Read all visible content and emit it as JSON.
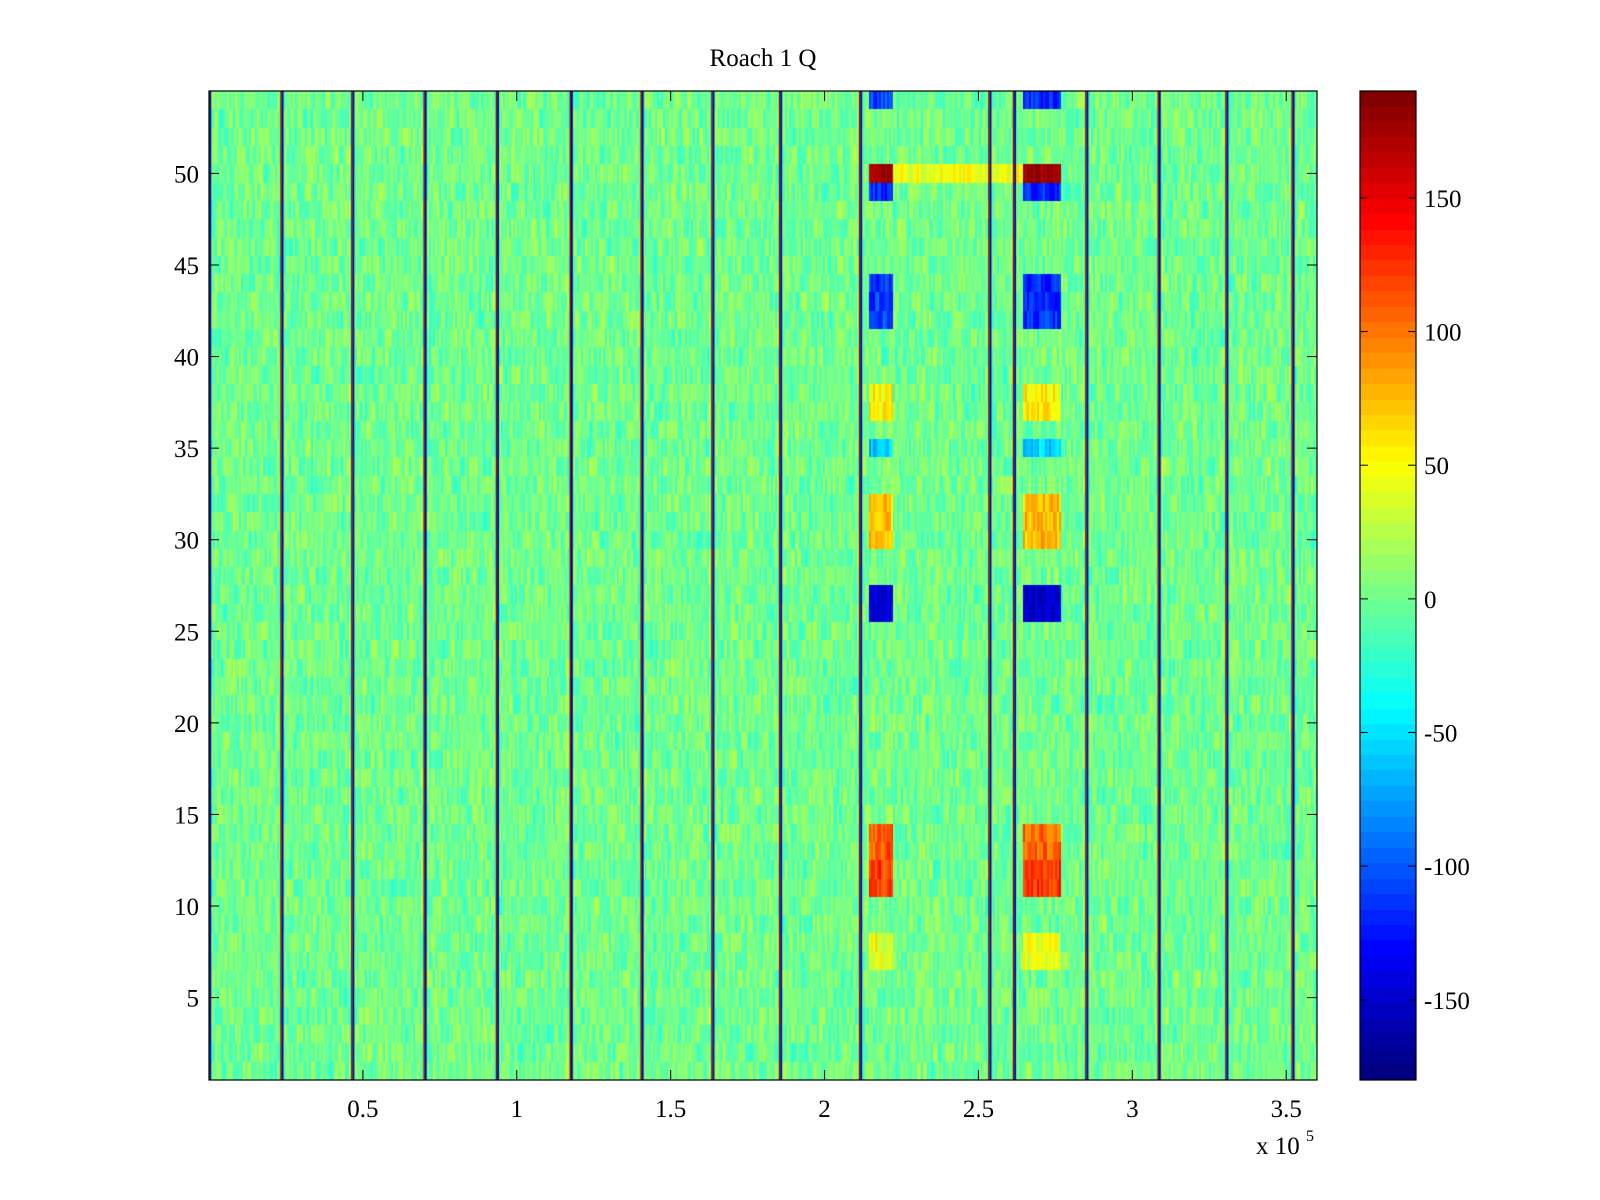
{
  "chart_data": {
    "type": "heatmap",
    "title": "Roach 1 Q",
    "xlabel": "",
    "ylabel": "",
    "x_multiplier_label": "x 10",
    "x_multiplier_exponent": "5",
    "xlim": [
      0,
      3.6
    ],
    "ylim": [
      0.5,
      54.5
    ],
    "x_ticks": [
      0.5,
      1,
      1.5,
      2,
      2.5,
      3,
      3.5
    ],
    "x_tick_labels": [
      "0.5",
      "1",
      "1.5",
      "2",
      "2.5",
      "3",
      "3.5"
    ],
    "y_ticks": [
      5,
      10,
      15,
      20,
      25,
      30,
      35,
      40,
      45,
      50
    ],
    "y_tick_labels": [
      "5",
      "10",
      "15",
      "20",
      "25",
      "30",
      "35",
      "40",
      "45",
      "50"
    ],
    "rows": 54,
    "colormap": "jet",
    "clim": [
      -180,
      190
    ],
    "colorbar_ticks": [
      150,
      100,
      50,
      0,
      -50,
      -100,
      -150
    ],
    "colorbar_tick_labels": [
      "150",
      "100",
      "50",
      "0",
      "-50",
      "-100",
      "-150"
    ],
    "background_value_range": [
      -30,
      30
    ],
    "vertical_stripe_x": [
      0.0,
      0.235,
      0.465,
      0.7,
      0.935,
      1.175,
      1.405,
      1.635,
      1.855,
      2.115,
      2.535,
      2.615,
      2.85,
      3.085,
      3.305,
      3.52
    ],
    "bursts": [
      {
        "x_range": [
          2.145,
          2.225
        ],
        "y_range": [
          12.5,
          14.5
        ],
        "value": 110
      },
      {
        "x_range": [
          2.145,
          2.225
        ],
        "y_range": [
          10.5,
          12.5
        ],
        "value": 120
      },
      {
        "x_range": [
          2.145,
          2.225
        ],
        "y_range": [
          6.5,
          8.5
        ],
        "value": 45
      },
      {
        "x_range": [
          2.145,
          2.225
        ],
        "y_range": [
          25.5,
          27.5
        ],
        "value": -140
      },
      {
        "x_range": [
          2.145,
          2.225
        ],
        "y_range": [
          29.5,
          32.5
        ],
        "value": 70
      },
      {
        "x_range": [
          2.145,
          2.225
        ],
        "y_range": [
          36.5,
          38.5
        ],
        "value": 55
      },
      {
        "x_range": [
          2.145,
          2.225
        ],
        "y_range": [
          34.5,
          35.5
        ],
        "value": -60
      },
      {
        "x_range": [
          2.145,
          2.225
        ],
        "y_range": [
          41.5,
          44.5
        ],
        "value": -110
      },
      {
        "x_range": [
          2.145,
          2.225
        ],
        "y_range": [
          48.5,
          49.5
        ],
        "value": -120
      },
      {
        "x_range": [
          2.145,
          2.225
        ],
        "y_range": [
          49.5,
          50.5
        ],
        "value": 175
      },
      {
        "x_range": [
          2.145,
          2.225
        ],
        "y_range": [
          53.5,
          54.5
        ],
        "value": -110
      },
      {
        "x_range": [
          2.225,
          2.645
        ],
        "y_range": [
          49.5,
          50.5
        ],
        "value": 45
      },
      {
        "x_range": [
          2.645,
          2.765
        ],
        "y_range": [
          12.5,
          14.5
        ],
        "value": 105
      },
      {
        "x_range": [
          2.645,
          2.765
        ],
        "y_range": [
          10.5,
          12.5
        ],
        "value": 125
      },
      {
        "x_range": [
          2.645,
          2.765
        ],
        "y_range": [
          6.5,
          8.5
        ],
        "value": 45
      },
      {
        "x_range": [
          2.645,
          2.765
        ],
        "y_range": [
          25.5,
          27.5
        ],
        "value": -150
      },
      {
        "x_range": [
          2.645,
          2.765
        ],
        "y_range": [
          29.5,
          32.5
        ],
        "value": 75
      },
      {
        "x_range": [
          2.645,
          2.765
        ],
        "y_range": [
          36.5,
          38.5
        ],
        "value": 55
      },
      {
        "x_range": [
          2.645,
          2.765
        ],
        "y_range": [
          34.5,
          35.5
        ],
        "value": -60
      },
      {
        "x_range": [
          2.645,
          2.765
        ],
        "y_range": [
          41.5,
          44.5
        ],
        "value": -115
      },
      {
        "x_range": [
          2.645,
          2.765
        ],
        "y_range": [
          48.5,
          49.5
        ],
        "value": -120
      },
      {
        "x_range": [
          2.645,
          2.765
        ],
        "y_range": [
          49.5,
          50.5
        ],
        "value": 180
      },
      {
        "x_range": [
          2.645,
          2.765
        ],
        "y_range": [
          53.5,
          54.5
        ],
        "value": -115
      }
    ]
  }
}
